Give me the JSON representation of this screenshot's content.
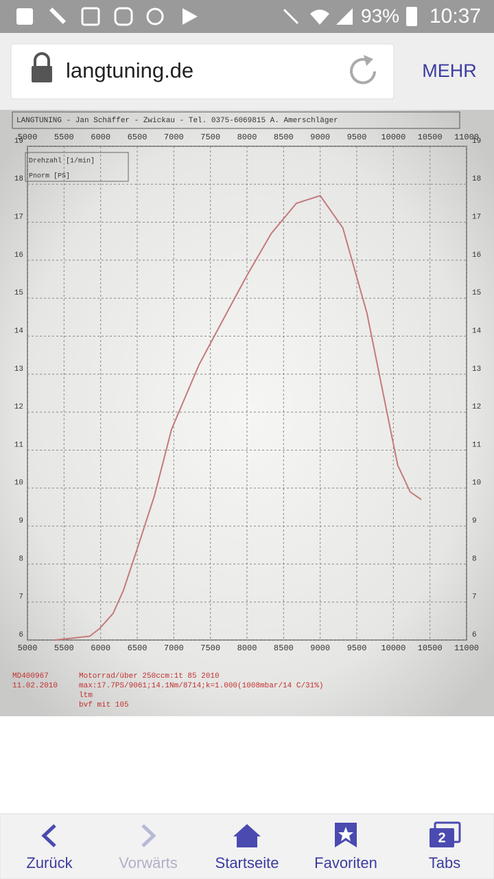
{
  "status_bar": {
    "battery": "93%",
    "time": "10:37"
  },
  "address_bar": {
    "url": "langtuning.de",
    "menu": "MEHR"
  },
  "chart": {
    "type": "line",
    "header": "LANGTUNING  -  Jan Schäffer  -  Zwickau  -  Tel. 0375-6069815     A. Amerschläger",
    "legend": [
      "Drehzahl [1/min]",
      "Pnorm [PS]"
    ],
    "color": "#c47a7a",
    "x": [
      5375,
      5850,
      5985,
      6170,
      6310,
      6500,
      6735,
      6970,
      7345,
      7720,
      8000,
      8330,
      8675,
      9000,
      9310,
      9640,
      9970,
      10060,
      10230,
      10380
    ],
    "values": [
      6.0,
      6.1,
      6.3,
      6.7,
      7.3,
      8.4,
      9.8,
      11.55,
      13.25,
      14.6,
      15.6,
      16.7,
      17.5,
      17.7,
      16.85,
      14.6,
      11.45,
      10.6,
      9.9,
      9.7
    ],
    "xlim": [
      5000,
      11000
    ],
    "ylim": [
      6,
      19
    ],
    "xticks": [
      5000,
      5500,
      6000,
      6500,
      7000,
      7500,
      8000,
      8500,
      9000,
      9500,
      10000,
      10500,
      11000
    ],
    "yticks": [
      6,
      7,
      8,
      9,
      10,
      11,
      12,
      13,
      14,
      15,
      16,
      17,
      18,
      19
    ],
    "grid": true,
    "footer": [
      "MD400967",
      "11.02.2010",
      "Motorrad/über 250ccm:1t 85 2010",
      "max:17.7PS/9061;14.1Nm/8714;k=1.000(1008mbar/14 C/31%)",
      "ltm",
      "bvf mit 105"
    ]
  },
  "nav_bar": {
    "back": "Zurück",
    "forward": "Vorwärts",
    "home": "Startseite",
    "favorites": "Favoriten",
    "tabs": "Tabs",
    "tab_count": "2"
  }
}
